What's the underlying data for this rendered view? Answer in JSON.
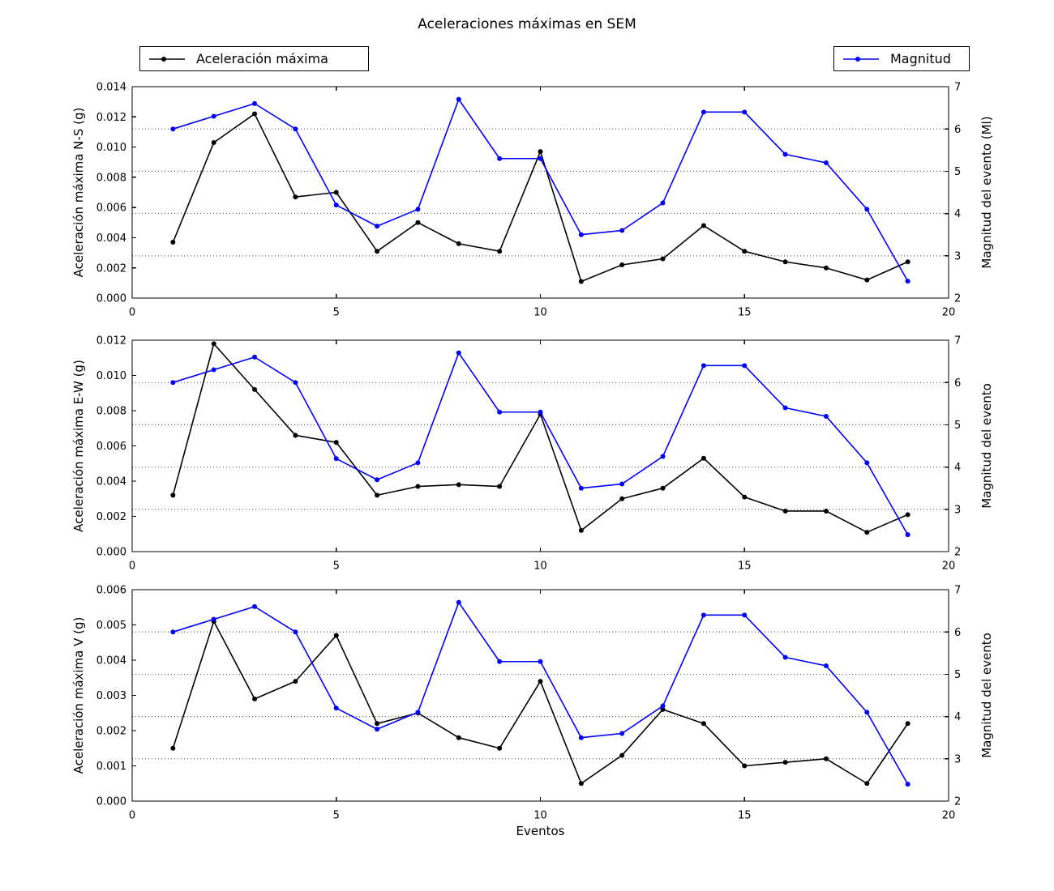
{
  "title": "Aceleraciones máximas en SEM",
  "xlabel": "Eventos",
  "colors": {
    "accel": "#000000",
    "magnitude": "#0000ff",
    "grid": "#4a4a4a",
    "background": "#ffffff",
    "axis": "#000000"
  },
  "legend": {
    "accel_label": "Aceleración máxima",
    "magnitude_label": "Magnitud"
  },
  "chart_data": [
    {
      "type": "line",
      "ylabel_left": "Aceleración máxima N-S (g)",
      "ylabel_right": "Magnitud del evento (Ml)",
      "x": [
        1,
        2,
        3,
        4,
        5,
        6,
        7,
        8,
        9,
        10,
        11,
        12,
        13,
        14,
        15,
        16,
        17,
        18,
        19
      ],
      "xlim": [
        0,
        20
      ],
      "xticks": [
        0,
        5,
        10,
        15,
        20
      ],
      "show_xtick_labels": true,
      "ylim_left": [
        0,
        0.014
      ],
      "yticks_left": [
        0,
        0.002,
        0.004,
        0.006,
        0.008,
        0.01,
        0.012,
        0.014
      ],
      "left_tick_decimals": 3,
      "ylim_right": [
        2,
        7
      ],
      "yticks_right": [
        2,
        3,
        4,
        5,
        6,
        7
      ],
      "grid_values_right": [
        3,
        4,
        5,
        6
      ],
      "series": [
        {
          "name": "Aceleración máxima",
          "axis": "left",
          "color": "#000000",
          "values": [
            0.0037,
            0.0103,
            0.0122,
            0.0067,
            0.007,
            0.0031,
            0.005,
            0.0036,
            0.0031,
            0.0097,
            0.0011,
            0.0022,
            0.0026,
            0.0048,
            0.0031,
            0.0024,
            0.002,
            0.0012,
            0.0024
          ]
        },
        {
          "name": "Magnitud",
          "axis": "right",
          "color": "#0000ff",
          "values": [
            6.0,
            6.3,
            6.6,
            6.0,
            4.2,
            3.7,
            4.1,
            6.7,
            5.3,
            5.3,
            3.5,
            3.6,
            4.25,
            6.4,
            6.4,
            5.4,
            5.2,
            4.1,
            2.4
          ]
        }
      ]
    },
    {
      "type": "line",
      "ylabel_left": "Aceleración máxima E-W (g)",
      "ylabel_right": "Magnitud del evento",
      "x": [
        1,
        2,
        3,
        4,
        5,
        6,
        7,
        8,
        9,
        10,
        11,
        12,
        13,
        14,
        15,
        16,
        17,
        18,
        19
      ],
      "xlim": [
        0,
        20
      ],
      "xticks": [
        0,
        5,
        10,
        15,
        20
      ],
      "show_xtick_labels": true,
      "ylim_left": [
        0,
        0.012
      ],
      "yticks_left": [
        0,
        0.002,
        0.004,
        0.006,
        0.008,
        0.01,
        0.012
      ],
      "left_tick_decimals": 3,
      "ylim_right": [
        2,
        7
      ],
      "yticks_right": [
        2,
        3,
        4,
        5,
        6,
        7
      ],
      "grid_values_right": [
        3,
        4,
        5,
        6
      ],
      "series": [
        {
          "name": "Aceleración máxima",
          "axis": "left",
          "color": "#000000",
          "values": [
            0.0032,
            0.0118,
            0.0092,
            0.0066,
            0.0062,
            0.0032,
            0.0037,
            0.0038,
            0.0037,
            0.0078,
            0.0012,
            0.003,
            0.0036,
            0.0053,
            0.0031,
            0.0023,
            0.0023,
            0.0011,
            0.0021
          ]
        },
        {
          "name": "Magnitud",
          "axis": "right",
          "color": "#0000ff",
          "values": [
            6.0,
            6.3,
            6.6,
            6.0,
            4.2,
            3.7,
            4.1,
            6.7,
            5.3,
            5.3,
            3.5,
            3.6,
            4.25,
            6.4,
            6.4,
            5.4,
            5.2,
            4.1,
            2.4
          ]
        }
      ]
    },
    {
      "type": "line",
      "ylabel_left": "Aceleración máxima V (g)",
      "ylabel_right": "Magnitud del evento",
      "xlabel": "Eventos",
      "x": [
        1,
        2,
        3,
        4,
        5,
        6,
        7,
        8,
        9,
        10,
        11,
        12,
        13,
        14,
        15,
        16,
        17,
        18,
        19
      ],
      "xlim": [
        0,
        20
      ],
      "xticks": [
        0,
        5,
        10,
        15,
        20
      ],
      "show_xtick_labels": true,
      "ylim_left": [
        0,
        0.006
      ],
      "yticks_left": [
        0,
        0.001,
        0.002,
        0.003,
        0.004,
        0.005,
        0.006
      ],
      "left_tick_decimals": 3,
      "ylim_right": [
        2,
        7
      ],
      "yticks_right": [
        2,
        3,
        4,
        5,
        6,
        7
      ],
      "grid_values_right": [
        3,
        4,
        5,
        6
      ],
      "series": [
        {
          "name": "Aceleración máxima",
          "axis": "left",
          "color": "#000000",
          "values": [
            0.0015,
            0.0051,
            0.0029,
            0.0034,
            0.0047,
            0.0022,
            0.0025,
            0.0018,
            0.0015,
            0.0034,
            0.0005,
            0.0013,
            0.0026,
            0.0022,
            0.001,
            0.0011,
            0.0012,
            0.0005,
            0.0022
          ]
        },
        {
          "name": "Magnitud",
          "axis": "right",
          "color": "#0000ff",
          "values": [
            6.0,
            6.3,
            6.6,
            6.0,
            4.2,
            3.7,
            4.1,
            6.7,
            5.3,
            5.3,
            3.5,
            3.6,
            4.25,
            6.4,
            6.4,
            5.4,
            5.2,
            4.1,
            2.4
          ]
        }
      ]
    }
  ]
}
